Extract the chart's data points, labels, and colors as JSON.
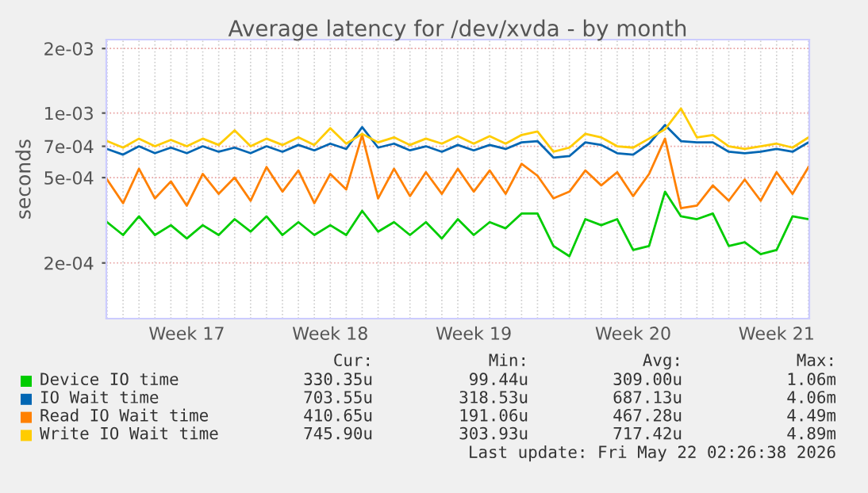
{
  "chart_data": {
    "type": "line",
    "title": "Average latency for /dev/xvda - by month",
    "ylabel": "seconds",
    "categories": [
      null,
      null,
      null,
      null,
      null,
      "Week 17",
      null,
      null,
      null,
      null,
      null,
      null,
      null,
      null,
      "Week 18",
      null,
      null,
      null,
      null,
      null,
      null,
      null,
      null,
      "Week 19",
      null,
      null,
      null,
      null,
      null,
      null,
      null,
      null,
      null,
      "Week 20",
      null,
      null,
      null,
      null,
      null,
      null,
      null,
      null,
      "Week 21",
      null,
      null
    ],
    "series": [
      {
        "name": "Device IO time",
        "color": "#00cc00",
        "values": [
          0.00031,
          0.00027,
          0.00033,
          0.00027,
          0.0003,
          0.00026,
          0.0003,
          0.00027,
          0.00032,
          0.00028,
          0.00033,
          0.00027,
          0.00031,
          0.00027,
          0.0003,
          0.00027,
          0.00035,
          0.00028,
          0.00031,
          0.00027,
          0.00031,
          0.00026,
          0.00032,
          0.00027,
          0.00031,
          0.00029,
          0.00034,
          0.00034,
          0.00024,
          0.000215,
          0.00032,
          0.0003,
          0.00032,
          0.00023,
          0.00024,
          0.00043,
          0.00033,
          0.00032,
          0.00034,
          0.00024,
          0.00025,
          0.00022,
          0.00023,
          0.00033,
          0.00032
        ]
      },
      {
        "name": "IO Wait time",
        "color": "#0066b3",
        "values": [
          0.00068,
          0.00064,
          0.0007,
          0.00065,
          0.00069,
          0.00065,
          0.0007,
          0.00066,
          0.00069,
          0.00065,
          0.0007,
          0.00066,
          0.00071,
          0.00067,
          0.00072,
          0.00068,
          0.00086,
          0.00069,
          0.00072,
          0.00067,
          0.0007,
          0.00066,
          0.00071,
          0.00067,
          0.00071,
          0.00068,
          0.00073,
          0.00074,
          0.00062,
          0.00063,
          0.00073,
          0.00071,
          0.00065,
          0.00064,
          0.00072,
          0.00088,
          0.00074,
          0.00073,
          0.00073,
          0.00066,
          0.00065,
          0.00066,
          0.00068,
          0.00066,
          0.00073
        ]
      },
      {
        "name": "Read IO Wait time",
        "color": "#ff8000",
        "values": [
          0.00049,
          0.00038,
          0.00055,
          0.0004,
          0.00048,
          0.00037,
          0.00052,
          0.00042,
          0.0005,
          0.00039,
          0.00056,
          0.00043,
          0.00054,
          0.00038,
          0.00052,
          0.00044,
          0.00079,
          0.0004,
          0.00055,
          0.00041,
          0.00053,
          0.00042,
          0.00055,
          0.00043,
          0.00054,
          0.00042,
          0.00058,
          0.00051,
          0.0004,
          0.00043,
          0.00054,
          0.00046,
          0.00053,
          0.00041,
          0.00052,
          0.00076,
          0.00036,
          0.00037,
          0.00046,
          0.00039,
          0.00049,
          0.00039,
          0.00053,
          0.00042,
          0.00056
        ]
      },
      {
        "name": "Write IO Wait time",
        "color": "#ffcc00",
        "values": [
          0.00074,
          0.00069,
          0.00076,
          0.0007,
          0.00075,
          0.0007,
          0.00076,
          0.00071,
          0.00083,
          0.0007,
          0.00076,
          0.00071,
          0.00077,
          0.00071,
          0.00085,
          0.00072,
          0.0008,
          0.00073,
          0.00077,
          0.00071,
          0.00076,
          0.00072,
          0.00078,
          0.00072,
          0.00078,
          0.00072,
          0.00079,
          0.00082,
          0.00066,
          0.00069,
          0.0008,
          0.00077,
          0.0007,
          0.00069,
          0.00076,
          0.00084,
          0.00105,
          0.00077,
          0.00079,
          0.0007,
          0.00068,
          0.0007,
          0.00072,
          0.00069,
          0.00077
        ]
      }
    ],
    "log": "y",
    "ylim": [
      0.00011,
      0.0022
    ],
    "yticks": [
      {
        "value": 0.0002,
        "label": "2e-04"
      },
      {
        "value": 0.0005,
        "label": "5e-04"
      },
      {
        "value": 0.0007,
        "label": "7e-04"
      },
      {
        "value": 0.001,
        "label": "1e-03"
      },
      {
        "value": 0.002,
        "label": "2e-03"
      }
    ],
    "grid": true,
    "legend": "bottom",
    "line_style": "solid",
    "marker": "none",
    "annotations": [
      "Cur:",
      "Min:",
      "Avg:",
      "Max:",
      "330.35u",
      "99.44u",
      "309.00u",
      "1.06m",
      "703.55u",
      "318.53u",
      "687.13u",
      "4.06m",
      "410.65u",
      "191.06u",
      "467.28u",
      "4.49m",
      "745.90u",
      "303.93u",
      "717.42u",
      "4.89m",
      "Last update: Fri May 22 02:26:38 2026"
    ]
  }
}
